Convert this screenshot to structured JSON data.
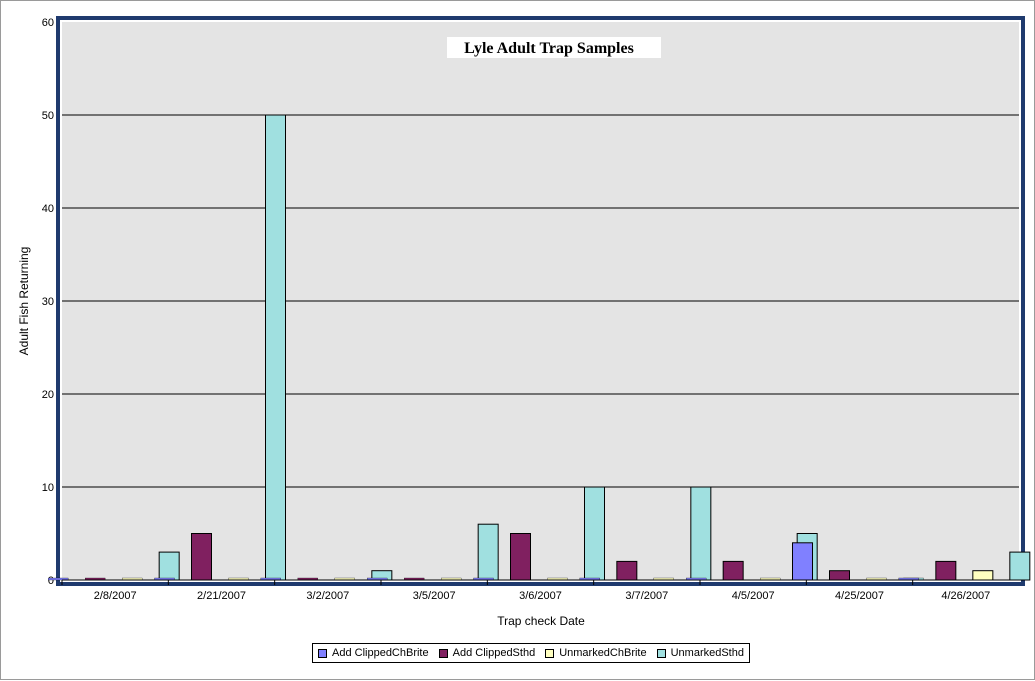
{
  "chart_data": {
    "type": "bar",
    "title": "Lyle Adult Trap Samples",
    "xlabel": "Trap check Date",
    "ylabel": "Adult Fish Returning",
    "ylim": [
      0,
      60
    ],
    "yticks": [
      0,
      10,
      20,
      30,
      40,
      50,
      60
    ],
    "grid": true,
    "legend_position": "bottom",
    "categories": [
      "2/8/2007",
      "2/21/2007",
      "3/2/2007",
      "3/5/2007",
      "3/6/2007",
      "3/7/2007",
      "4/5/2007",
      "4/25/2007",
      "4/26/2007"
    ],
    "series": [
      {
        "name": "Add ClippedChBrite",
        "color": "#8080ff",
        "values": [
          0,
          0,
          0,
          0,
          0,
          0,
          0,
          4,
          0
        ]
      },
      {
        "name": "Add ClippedSthd",
        "color": "#802060",
        "values": [
          0,
          5,
          0,
          0,
          5,
          2,
          2,
          1,
          2
        ]
      },
      {
        "name": "UnmarkedChBrite",
        "color": "#ffffc0",
        "values": [
          0,
          0,
          0,
          0,
          0,
          0,
          0,
          0,
          1
        ]
      },
      {
        "name": "UnmarkedSthd",
        "color": "#a0e0e0",
        "values": [
          3,
          50,
          1,
          6,
          10,
          10,
          5,
          0,
          3
        ]
      }
    ]
  }
}
